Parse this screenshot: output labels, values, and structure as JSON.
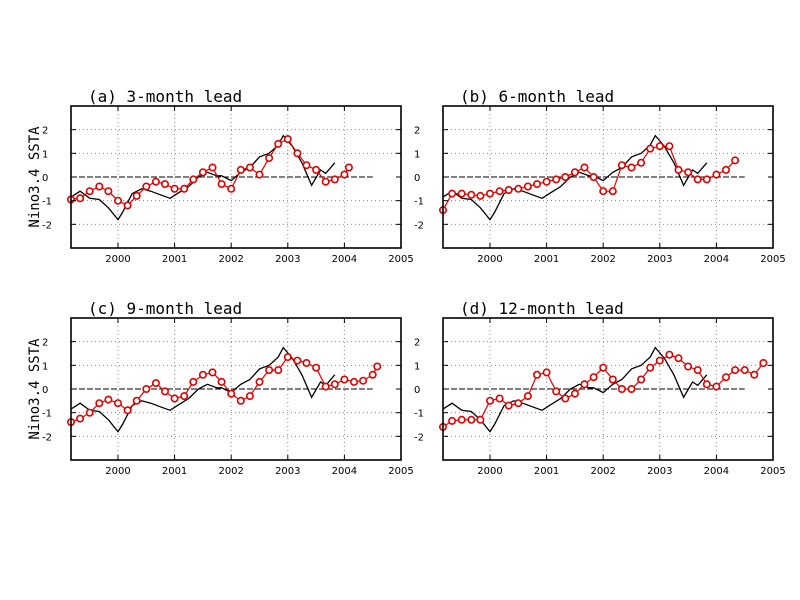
{
  "figure": {
    "ylabel": "Nino3.4 SSTA"
  },
  "chart_data": [
    {
      "type": "line",
      "title": "(a) 3-month lead",
      "ylabel": "Nino3.4 SSTA",
      "xlim": [
        1999.17,
        2005.0
      ],
      "ylim": [
        -3,
        3
      ],
      "xticks": [
        2000,
        2001,
        2002,
        2003,
        2004,
        2005
      ],
      "yticks": [
        -2,
        -1,
        0,
        1,
        2
      ],
      "grid": true,
      "series": [
        {
          "role": "observed",
          "color": "#000000",
          "marker": "none",
          "x": [
            1999.17,
            1999.33,
            1999.5,
            1999.67,
            1999.83,
            2000.0,
            2000.08,
            2000.25,
            2000.42,
            2000.58,
            2000.75,
            2000.92,
            2001.08,
            2001.25,
            2001.42,
            2001.58,
            2001.75,
            2001.83,
            2002.0,
            2002.17,
            2002.33,
            2002.5,
            2002.67,
            2002.83,
            2002.92,
            2003.08,
            2003.25,
            2003.42,
            2003.58,
            2003.67,
            2003.83
          ],
          "y": [
            -0.85,
            -0.6,
            -0.9,
            -0.95,
            -1.3,
            -1.8,
            -1.5,
            -0.7,
            -0.5,
            -0.6,
            -0.75,
            -0.9,
            -0.65,
            -0.4,
            0.0,
            0.2,
            0.05,
            0.05,
            -0.15,
            0.2,
            0.4,
            0.85,
            1.0,
            1.35,
            1.75,
            1.3,
            0.6,
            -0.35,
            0.3,
            0.15,
            0.6
          ]
        },
        {
          "role": "forecast",
          "color": "#e00000",
          "marker": "circle",
          "x": [
            1999.17,
            1999.33,
            1999.5,
            1999.67,
            1999.83,
            2000.0,
            2000.17,
            2000.33,
            2000.5,
            2000.67,
            2000.83,
            2001.0,
            2001.17,
            2001.33,
            2001.5,
            2001.67,
            2001.83,
            2002.0,
            2002.17,
            2002.33,
            2002.5,
            2002.67,
            2002.83,
            2003.0,
            2003.17,
            2003.33,
            2003.5,
            2003.67,
            2003.83,
            2004.0,
            2004.08
          ],
          "y": [
            -0.95,
            -0.9,
            -0.6,
            -0.4,
            -0.6,
            -1.0,
            -1.2,
            -0.8,
            -0.4,
            -0.2,
            -0.3,
            -0.5,
            -0.5,
            -0.1,
            0.2,
            0.4,
            -0.3,
            -0.5,
            0.3,
            0.4,
            0.1,
            0.8,
            1.4,
            1.6,
            1.0,
            0.5,
            0.3,
            -0.2,
            -0.1,
            0.1,
            0.4
          ]
        }
      ]
    },
    {
      "type": "line",
      "title": "(b) 6-month lead",
      "ylabel": "",
      "xlim": [
        1999.17,
        2005.0
      ],
      "ylim": [
        -3,
        3
      ],
      "xticks": [
        2000,
        2001,
        2002,
        2003,
        2004,
        2005
      ],
      "yticks": [
        -2,
        -1,
        0,
        1,
        2
      ],
      "grid": true,
      "series": [
        {
          "role": "observed",
          "color": "#000000",
          "marker": "none",
          "x": [
            1999.17,
            1999.33,
            1999.5,
            1999.67,
            1999.83,
            2000.0,
            2000.08,
            2000.25,
            2000.42,
            2000.58,
            2000.75,
            2000.92,
            2001.08,
            2001.25,
            2001.42,
            2001.58,
            2001.75,
            2001.83,
            2002.0,
            2002.17,
            2002.33,
            2002.5,
            2002.67,
            2002.83,
            2002.92,
            2003.08,
            2003.25,
            2003.42,
            2003.58,
            2003.67,
            2003.83
          ],
          "y": [
            -0.85,
            -0.6,
            -0.9,
            -0.95,
            -1.3,
            -1.8,
            -1.5,
            -0.7,
            -0.5,
            -0.6,
            -0.75,
            -0.9,
            -0.65,
            -0.4,
            0.0,
            0.2,
            0.05,
            0.05,
            -0.15,
            0.2,
            0.4,
            0.85,
            1.0,
            1.35,
            1.75,
            1.3,
            0.6,
            -0.35,
            0.3,
            0.15,
            0.6
          ]
        },
        {
          "role": "forecast",
          "color": "#e00000",
          "marker": "circle",
          "x": [
            1999.17,
            1999.33,
            1999.5,
            1999.67,
            1999.83,
            2000.0,
            2000.17,
            2000.33,
            2000.5,
            2000.67,
            2000.83,
            2001.0,
            2001.17,
            2001.33,
            2001.5,
            2001.67,
            2001.83,
            2002.0,
            2002.17,
            2002.33,
            2002.5,
            2002.67,
            2002.83,
            2003.0,
            2003.17,
            2003.33,
            2003.5,
            2003.67,
            2003.83,
            2004.0,
            2004.17,
            2004.33
          ],
          "y": [
            -1.4,
            -0.7,
            -0.7,
            -0.75,
            -0.8,
            -0.7,
            -0.6,
            -0.55,
            -0.5,
            -0.4,
            -0.3,
            -0.2,
            -0.1,
            0.0,
            0.2,
            0.4,
            0.0,
            -0.6,
            -0.6,
            0.5,
            0.4,
            0.6,
            1.2,
            1.3,
            1.3,
            0.3,
            0.2,
            -0.1,
            -0.1,
            0.1,
            0.3,
            0.7
          ]
        }
      ]
    },
    {
      "type": "line",
      "title": "(c) 9-month lead",
      "ylabel": "Nino3.4 SSTA",
      "xlim": [
        1999.17,
        2005.0
      ],
      "ylim": [
        -3,
        3
      ],
      "xticks": [
        2000,
        2001,
        2002,
        2003,
        2004,
        2005
      ],
      "yticks": [
        -2,
        -1,
        0,
        1,
        2
      ],
      "grid": true,
      "series": [
        {
          "role": "observed",
          "color": "#000000",
          "marker": "none",
          "x": [
            1999.17,
            1999.33,
            1999.5,
            1999.67,
            1999.83,
            2000.0,
            2000.08,
            2000.25,
            2000.42,
            2000.58,
            2000.75,
            2000.92,
            2001.08,
            2001.25,
            2001.42,
            2001.58,
            2001.75,
            2001.83,
            2002.0,
            2002.17,
            2002.33,
            2002.5,
            2002.67,
            2002.83,
            2002.92,
            2003.08,
            2003.25,
            2003.42,
            2003.58,
            2003.67,
            2003.83
          ],
          "y": [
            -0.85,
            -0.6,
            -0.9,
            -0.95,
            -1.3,
            -1.8,
            -1.5,
            -0.7,
            -0.5,
            -0.6,
            -0.75,
            -0.9,
            -0.65,
            -0.4,
            0.0,
            0.2,
            0.05,
            0.05,
            -0.15,
            0.2,
            0.4,
            0.85,
            1.0,
            1.35,
            1.75,
            1.3,
            0.6,
            -0.35,
            0.3,
            0.15,
            0.6
          ]
        },
        {
          "role": "forecast",
          "color": "#e00000",
          "marker": "circle",
          "x": [
            1999.17,
            1999.33,
            1999.5,
            1999.67,
            1999.83,
            2000.0,
            2000.17,
            2000.33,
            2000.5,
            2000.67,
            2000.83,
            2001.0,
            2001.17,
            2001.33,
            2001.5,
            2001.67,
            2001.83,
            2002.0,
            2002.17,
            2002.33,
            2002.5,
            2002.67,
            2002.83,
            2003.0,
            2003.17,
            2003.33,
            2003.5,
            2003.67,
            2003.83,
            2004.0,
            2004.17,
            2004.33,
            2004.5,
            2004.58
          ],
          "y": [
            -1.4,
            -1.25,
            -1.0,
            -0.6,
            -0.45,
            -0.6,
            -0.9,
            -0.5,
            0.0,
            0.25,
            -0.1,
            -0.4,
            -0.3,
            0.3,
            0.6,
            0.7,
            0.3,
            -0.2,
            -0.5,
            -0.3,
            0.3,
            0.8,
            0.8,
            1.35,
            1.2,
            1.1,
            0.9,
            0.1,
            0.2,
            0.4,
            0.3,
            0.35,
            0.6,
            0.95
          ]
        }
      ]
    },
    {
      "type": "line",
      "title": "(d) 12-month lead",
      "ylabel": "",
      "xlim": [
        1999.17,
        2005.0
      ],
      "ylim": [
        -3,
        3
      ],
      "xticks": [
        2000,
        2001,
        2002,
        2003,
        2004,
        2005
      ],
      "yticks": [
        -2,
        -1,
        0,
        1,
        2
      ],
      "grid": true,
      "series": [
        {
          "role": "observed",
          "color": "#000000",
          "marker": "none",
          "x": [
            1999.17,
            1999.33,
            1999.5,
            1999.67,
            1999.83,
            2000.0,
            2000.08,
            2000.25,
            2000.42,
            2000.58,
            2000.75,
            2000.92,
            2001.08,
            2001.25,
            2001.42,
            2001.58,
            2001.75,
            2001.83,
            2002.0,
            2002.17,
            2002.33,
            2002.5,
            2002.67,
            2002.83,
            2002.92,
            2003.08,
            2003.25,
            2003.42,
            2003.58,
            2003.67,
            2003.83
          ],
          "y": [
            -0.85,
            -0.6,
            -0.9,
            -0.95,
            -1.3,
            -1.8,
            -1.5,
            -0.7,
            -0.5,
            -0.6,
            -0.75,
            -0.9,
            -0.65,
            -0.4,
            0.0,
            0.2,
            0.05,
            0.05,
            -0.15,
            0.2,
            0.4,
            0.85,
            1.0,
            1.35,
            1.75,
            1.3,
            0.6,
            -0.35,
            0.3,
            0.15,
            0.6
          ]
        },
        {
          "role": "forecast",
          "color": "#e00000",
          "marker": "circle",
          "x": [
            1999.17,
            1999.33,
            1999.5,
            1999.67,
            1999.83,
            2000.0,
            2000.17,
            2000.33,
            2000.5,
            2000.67,
            2000.83,
            2001.0,
            2001.17,
            2001.33,
            2001.5,
            2001.67,
            2001.83,
            2002.0,
            2002.17,
            2002.33,
            2002.5,
            2002.67,
            2002.83,
            2003.0,
            2003.17,
            2003.33,
            2003.5,
            2003.67,
            2003.83,
            2004.0,
            2004.17,
            2004.33,
            2004.5,
            2004.67,
            2004.83
          ],
          "y": [
            -1.6,
            -1.35,
            -1.3,
            -1.3,
            -1.3,
            -0.5,
            -0.4,
            -0.7,
            -0.6,
            -0.3,
            0.6,
            0.7,
            -0.1,
            -0.4,
            -0.2,
            0.2,
            0.5,
            0.9,
            0.4,
            0.0,
            0.0,
            0.4,
            0.9,
            1.2,
            1.45,
            1.3,
            0.95,
            0.8,
            0.2,
            0.1,
            0.5,
            0.8,
            0.8,
            0.6,
            1.1
          ]
        }
      ]
    }
  ]
}
